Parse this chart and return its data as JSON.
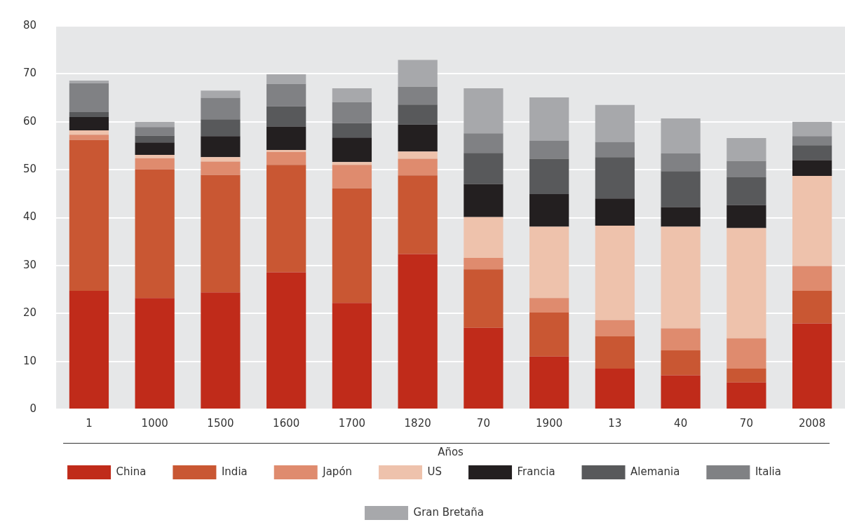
{
  "chart_data": {
    "type": "bar",
    "stacked": true,
    "xlabel": "Años",
    "categories": [
      "1",
      "1000",
      "1500",
      "1600",
      "1700",
      "1820",
      "70",
      "1900",
      "13",
      "40",
      "70",
      "2008"
    ],
    "ylim": [
      0,
      80
    ],
    "yticks": [
      0,
      10,
      20,
      30,
      40,
      50,
      60,
      70,
      80
    ],
    "grid": "y",
    "legend": "bottom",
    "series": [
      {
        "name": "China",
        "color": "#c02b1a",
        "values": [
          24.7,
          23.2,
          24.4,
          28.6,
          22.2,
          32.4,
          17.0,
          11.0,
          8.5,
          7.1,
          5.6,
          17.9
        ]
      },
      {
        "name": "India",
        "color": "#c95733",
        "values": [
          31.5,
          26.9,
          24.5,
          22.4,
          23.9,
          16.4,
          12.2,
          9.2,
          6.7,
          5.2,
          2.9,
          6.8
        ]
      },
      {
        "name": "Japón",
        "color": "#df8b6e",
        "values": [
          1.1,
          2.3,
          2.8,
          2.7,
          4.9,
          3.5,
          2.4,
          3.0,
          3.4,
          4.6,
          6.3,
          5.2
        ]
      },
      {
        "name": "US",
        "color": "#eec2ac",
        "values": [
          0.9,
          0.7,
          0.9,
          0.4,
          0.6,
          1.5,
          8.5,
          14.9,
          19.7,
          21.2,
          23.0,
          18.8
        ]
      },
      {
        "name": "Francia",
        "color": "#231f20",
        "values": [
          2.8,
          2.6,
          4.4,
          4.9,
          5.1,
          5.6,
          6.9,
          6.8,
          5.7,
          4.1,
          4.8,
          3.3
        ]
      },
      {
        "name": "Alemania",
        "color": "#58595b",
        "values": [
          1.0,
          1.4,
          3.5,
          4.2,
          3.0,
          4.2,
          6.5,
          7.4,
          8.6,
          7.5,
          5.8,
          3.1
        ]
      },
      {
        "name": "Italia",
        "color": "#808184",
        "values": [
          6.0,
          1.8,
          4.5,
          4.7,
          4.4,
          3.7,
          4.1,
          3.8,
          3.2,
          3.7,
          3.4,
          1.9
        ]
      },
      {
        "name": "Gran Bretaña",
        "color": "#a7a8ab",
        "values": [
          0.6,
          1.1,
          1.5,
          2.0,
          2.9,
          5.6,
          9.4,
          9.0,
          7.7,
          7.3,
          4.8,
          3.0
        ]
      }
    ]
  }
}
